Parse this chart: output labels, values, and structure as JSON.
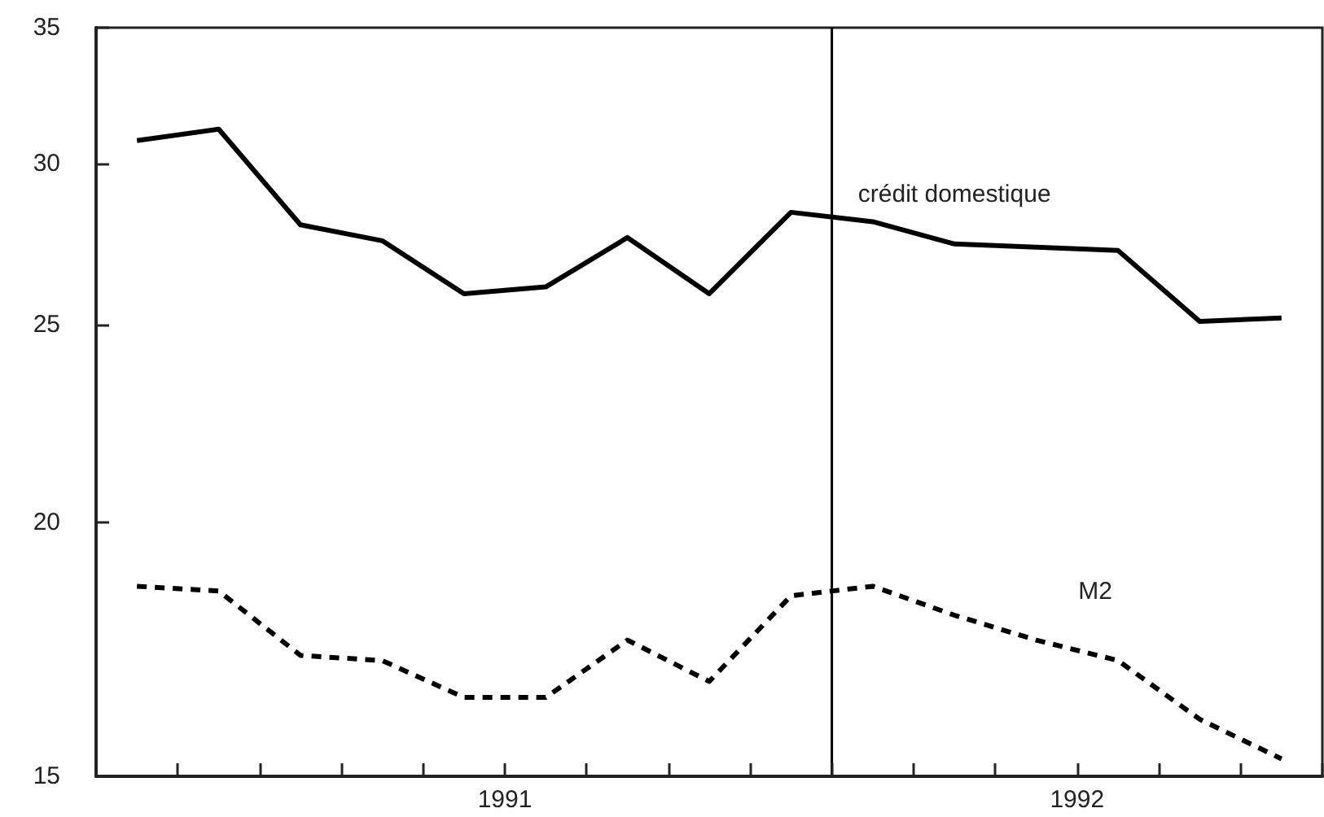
{
  "chart_data": {
    "type": "line",
    "log": "y",
    "marker": "none",
    "grid": false,
    "legend": false,
    "categories": [
      null,
      null,
      null,
      null,
      null,
      null,
      null,
      null,
      null,
      null,
      null,
      null,
      null,
      null,
      null
    ],
    "annotations": [
      "1991",
      "1992"
    ],
    "ylim": [
      15,
      35
    ],
    "yticks": [
      15,
      20,
      25,
      30,
      35
    ],
    "ref_lines": [
      {
        "axis": "x",
        "color": "#000000",
        "line_style": "solid"
      }
    ],
    "series": [
      {
        "name": "crédit domestique",
        "color": "#000000",
        "line_style": "solid",
        "values": [
          30.8,
          31.2,
          28.0,
          27.5,
          25.9,
          26.1,
          27.6,
          25.9,
          28.4,
          28.1,
          27.4,
          27.3,
          27.2,
          25.1,
          25.2
        ]
      },
      {
        "name": "M2",
        "color": "#000000",
        "line_style": "dashed",
        "values": [
          18.6,
          18.5,
          17.2,
          17.1,
          16.4,
          16.4,
          17.5,
          16.7,
          18.4,
          18.6,
          18.0,
          17.5,
          17.1,
          16.0,
          15.3
        ]
      }
    ]
  }
}
